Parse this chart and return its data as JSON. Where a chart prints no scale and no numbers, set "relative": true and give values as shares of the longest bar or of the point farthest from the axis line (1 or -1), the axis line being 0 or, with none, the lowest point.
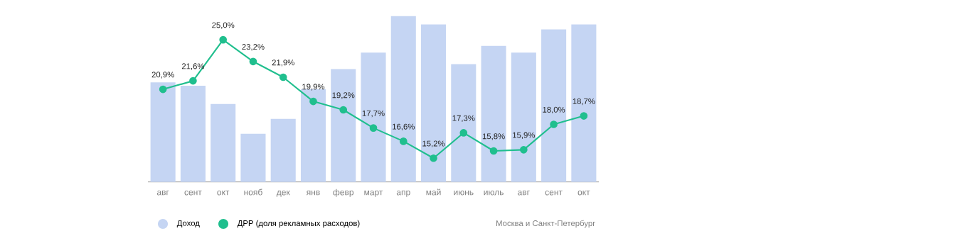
{
  "chart_data": [
    {
      "type": "bar",
      "relative": true,
      "categories": [
        "авг",
        "сент",
        "окт",
        "нояб",
        "дек",
        "янв",
        "февр",
        "март",
        "апр",
        "май",
        "июнь",
        "июль",
        "авг",
        "сент",
        "окт"
      ],
      "series": [
        {
          "name": "Доход",
          "color": "#c5d5f3",
          "values": [
            0.6,
            0.58,
            0.47,
            0.29,
            0.38,
            0.56,
            0.68,
            0.78,
            1,
            0.95,
            0.71,
            0.82,
            0.78,
            0.92,
            0.95
          ]
        }
      ],
      "legend": "bottom left",
      "annotations": [
        "Москва и Санкт-Петербург"
      ]
    },
    {
      "type": "line",
      "marker": "circle",
      "line_style": "solid",
      "categories": [
        null,
        null,
        null,
        null,
        null,
        null,
        null,
        null,
        null,
        null,
        null,
        null,
        null,
        null,
        null
      ],
      "series": [
        {
          "name": "ДРР (доля рекламных расходов)",
          "color": "#20bf8e",
          "values": [
            20.9,
            21.6,
            25.0,
            23.2,
            21.9,
            19.9,
            19.2,
            17.7,
            16.6,
            15.2,
            17.3,
            15.8,
            15.9,
            18.0,
            18.7
          ],
          "value_labels": [
            "20,9%",
            "21,6%",
            "25,0%",
            "23,2%",
            "21,9%",
            "19,9%",
            "19,2%",
            "17,7%",
            "16,6%",
            "15,2%",
            "17,3%",
            "15,8%",
            "15,9%",
            "18,0%",
            "18,7%"
          ]
        }
      ],
      "legend": "bottom left"
    }
  ]
}
